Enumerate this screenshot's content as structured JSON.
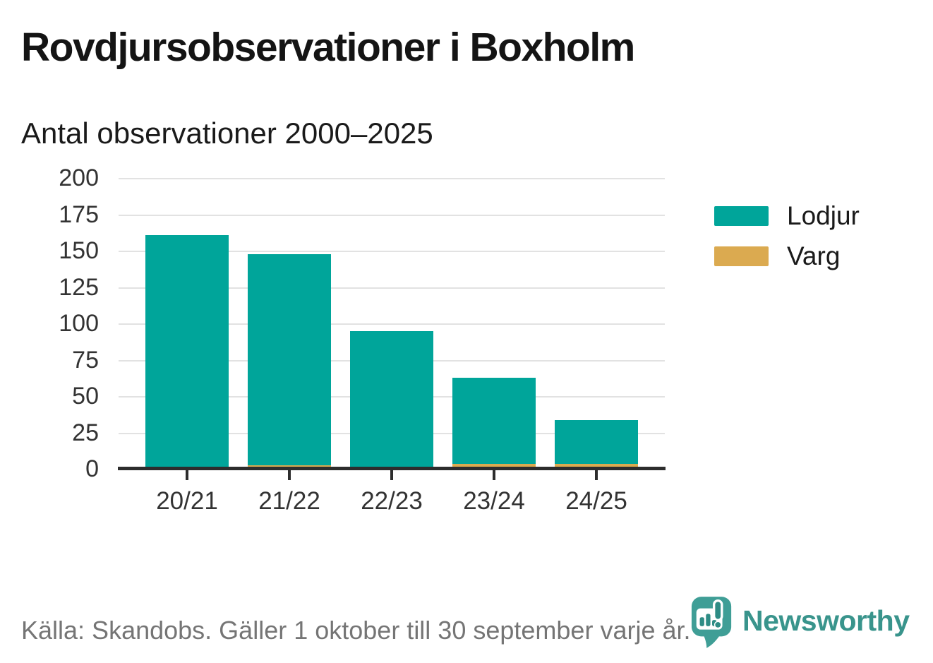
{
  "header": {
    "title": "Rovdjursobservationer i Boxholm",
    "subtitle": "Antal observationer 2000–2025"
  },
  "chart_data": {
    "type": "bar",
    "stacked": true,
    "title": "Antal observationer 2000–2025",
    "categories": [
      "20/21",
      "21/22",
      "22/23",
      "23/24",
      "24/25"
    ],
    "series": [
      {
        "name": "Varg",
        "color": "#DBAA50",
        "values": [
          0,
          3,
          0,
          4,
          4
        ]
      },
      {
        "name": "Lodjur",
        "color": "#00A59A",
        "values": [
          161,
          145,
          95,
          59,
          30
        ]
      }
    ],
    "stacked_totals": [
      161,
      148,
      95,
      63,
      34
    ],
    "xlabel": "",
    "ylabel": "",
    "ylim": [
      0,
      200
    ],
    "yticks": [
      0,
      25,
      50,
      75,
      100,
      125,
      150,
      175,
      200
    ],
    "grid": true,
    "legend_position": "right"
  },
  "legend": {
    "items": [
      {
        "label": "Lodjur",
        "color": "#00A59A"
      },
      {
        "label": "Varg",
        "color": "#DBAA50"
      }
    ]
  },
  "footer": {
    "source": "Källa: Skandobs. Gäller 1 oktober till 30 september varje år.",
    "brand": "Newsworthy"
  },
  "colors": {
    "lodjur": "#00A59A",
    "varg": "#DBAA50",
    "axis": "#2d2d2d",
    "gridline": "#e2e2e2",
    "text": "#1a1a1a",
    "muted_text": "#757575",
    "brand_teal": "#39948c",
    "logo_teal": "#3f9e96"
  },
  "icons": {
    "logo": "newsworthy-speech-bubble-chart-icon"
  }
}
